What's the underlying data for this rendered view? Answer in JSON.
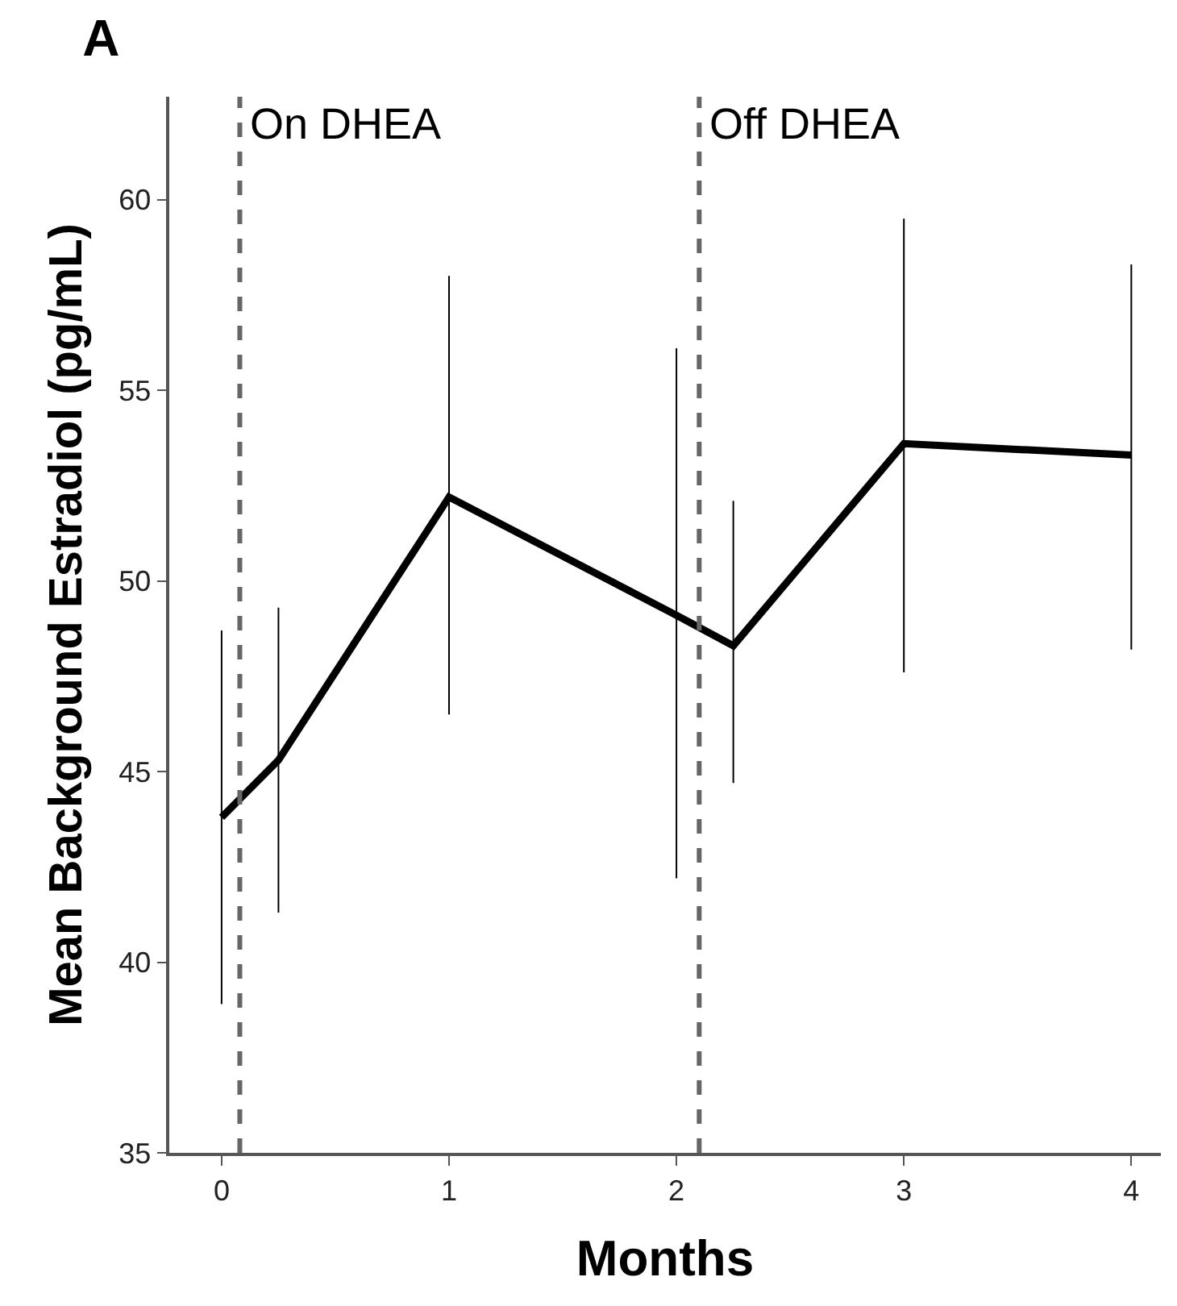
{
  "chart_data": {
    "type": "line",
    "title": "A",
    "xlabel": "Months",
    "ylabel": "Mean Background Estradiol (pg/mL)",
    "x": [
      0,
      0.25,
      1,
      2,
      2.25,
      3,
      4
    ],
    "series": [
      {
        "color": "#000000",
        "values": [
          43.8,
          45.3,
          52.2,
          49.1,
          48.3,
          53.6,
          53.3
        ],
        "errors": [
          [
            38.9,
            48.7
          ],
          [
            41.3,
            49.3
          ],
          [
            46.5,
            58.0
          ],
          [
            42.2,
            56.1
          ],
          [
            44.7,
            52.1
          ],
          [
            47.6,
            59.5
          ],
          [
            48.2,
            58.3
          ]
        ]
      }
    ],
    "xlim": [
      -0.23,
      4.13
    ],
    "ylim": [
      35,
      62.7
    ],
    "xticks": [
      0,
      1,
      2,
      3,
      4
    ],
    "yticks": [
      35,
      40,
      45,
      50,
      55,
      60
    ],
    "ref_lines": [
      {
        "axis": "x",
        "value": 0.08,
        "label": "On DHEA",
        "color": "#666666",
        "line_style": "dashed"
      },
      {
        "axis": "x",
        "value": 2.1,
        "label": "Off DHEA",
        "color": "#666666",
        "line_style": "dashed"
      }
    ],
    "grid": false,
    "legend": false,
    "marker": "none",
    "line_style": "solid"
  }
}
